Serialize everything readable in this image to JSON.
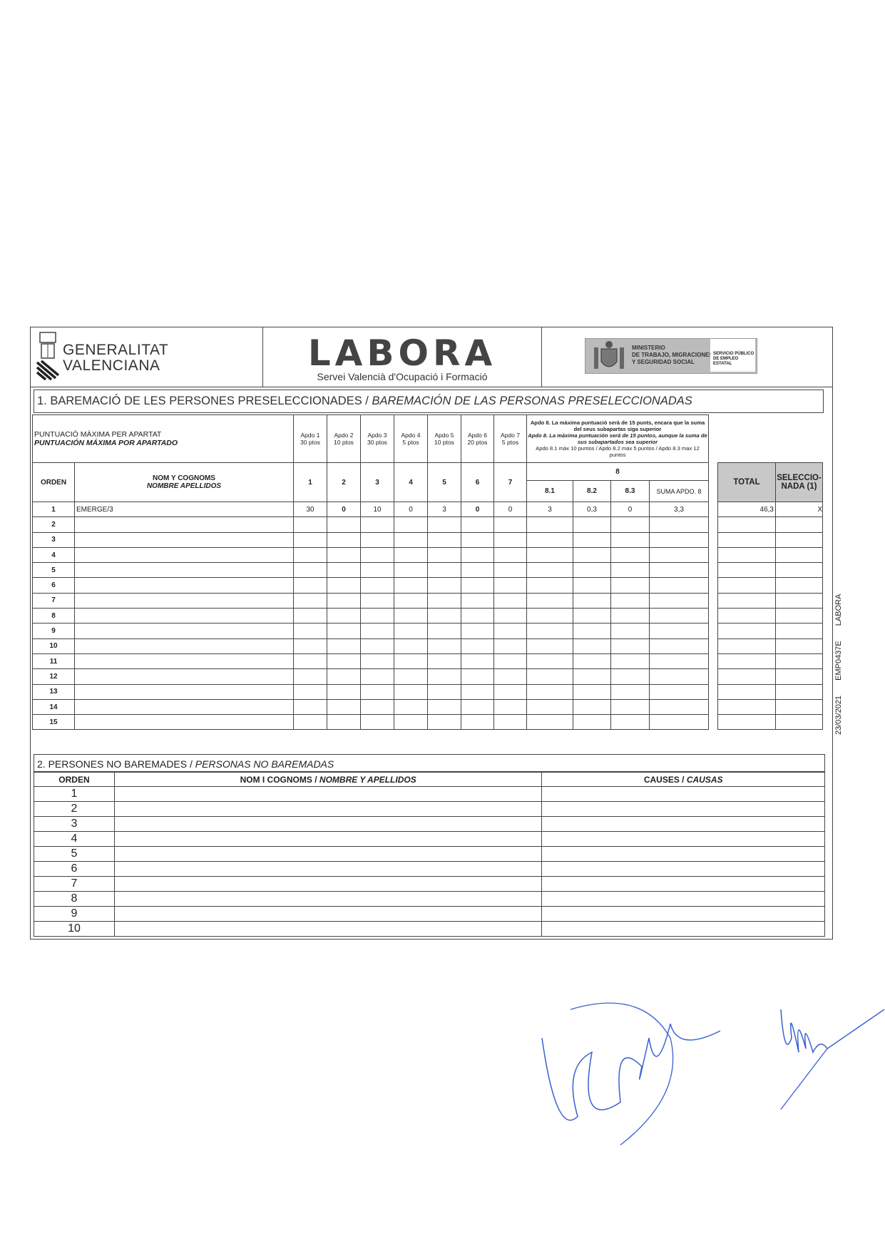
{
  "header": {
    "gva_name_line1": "GENERALITAT",
    "gva_name_line2": "VALENCIANA",
    "labora_logo": "LABORA",
    "labora_subtitle": "Servei Valencià d'Ocupació i Formació",
    "ministry_logo": "MINISTERIO DE TRABAJO, MIGRACIONES Y SEGURIDAD SOCIAL",
    "sepe_logo": "SERVICIO PÚBLICO DE EMPLEO ESTATAL"
  },
  "section1": {
    "title_va": "1. BAREMACIÓ DE LES PERSONES PRESELECCIONADES / ",
    "title_es": "BAREMACIÓN DE LAS PERSONAS PRESELECCIONADAS",
    "max_label_va": "PUNTUACIÓ MÀXIMA PER APARTAT",
    "max_label_es": "PUNTUACIÓN MÁXIMA POR APARTADO",
    "apdo_max": [
      {
        "name": "Apdo 1",
        "pts": "30 ptos"
      },
      {
        "name": "Apdo 2",
        "pts": "10 ptos"
      },
      {
        "name": "Apdo 3",
        "pts": "30 ptos"
      },
      {
        "name": "Apdo 4",
        "pts": "5 ptos"
      },
      {
        "name": "Apdo 5",
        "pts": "10 ptos"
      },
      {
        "name": "Apdo 6",
        "pts": "20 ptos"
      },
      {
        "name": "Apdo 7",
        "pts": "5 ptos"
      }
    ],
    "apdo8_note_va": "Apdo 8. La màxima puntuació serà de 15 punts, encara que la suma del seus subapartas siga superior",
    "apdo8_note_es": "Apdo 8. La máxima puntuación será de 15 puntos, aunque la suma de sus subapartados sea superior",
    "apdo8_note_sub": "Apdo 8.1 màx 10 puntos / Apdo 8.2 màx 5 puntos / Apdo 8.3 max 12 puntos",
    "col_orden": "ORDEN",
    "col_name_va": "NOM Y COGNOMS",
    "col_name_es": "NOMBRE APELLIDOS",
    "col_apdos": [
      "1",
      "2",
      "3",
      "4",
      "5",
      "6",
      "7"
    ],
    "col_8": "8",
    "col_8_sub": [
      "8.1",
      "8.2",
      "8.3",
      "SUMA APDO. 8"
    ],
    "col_total": "TOTAL",
    "col_selected": "SELECCIO-NADA (1)",
    "rows": [
      {
        "orden": "1",
        "name": "EMERGE/3",
        "a": [
          "30",
          "0",
          "10",
          "0",
          "3",
          "0",
          "0"
        ],
        "b": [
          "3",
          "0,3",
          "0",
          "3,3"
        ],
        "total": "46,3",
        "selected": "X"
      },
      {
        "orden": "2"
      },
      {
        "orden": "3"
      },
      {
        "orden": "4"
      },
      {
        "orden": "5"
      },
      {
        "orden": "6"
      },
      {
        "orden": "7"
      },
      {
        "orden": "8"
      },
      {
        "orden": "9"
      },
      {
        "orden": "10"
      },
      {
        "orden": "11"
      },
      {
        "orden": "12"
      },
      {
        "orden": "13"
      },
      {
        "orden": "14"
      },
      {
        "orden": "15"
      }
    ]
  },
  "section2": {
    "title_va": "2. PERSONES NO BAREMADES / ",
    "title_es": "PERSONAS NO BAREMADAS",
    "col_orden": "ORDEN",
    "col_name_va": "NOM I COGNOMS / ",
    "col_name_es": "NOMBRE Y APELLIDOS",
    "col_causes_va": "CAUSES / ",
    "col_causes_es": "CAUSAS",
    "rows": [
      "1",
      "2",
      "3",
      "4",
      "5",
      "6",
      "7",
      "8",
      "9",
      "10"
    ]
  },
  "side_text": "23/03/2021 EMP0437E LABORA",
  "colors": {
    "ink": "#222222",
    "header_gray": "#c8c8c8",
    "signature_blue": "#3a5fd0"
  }
}
